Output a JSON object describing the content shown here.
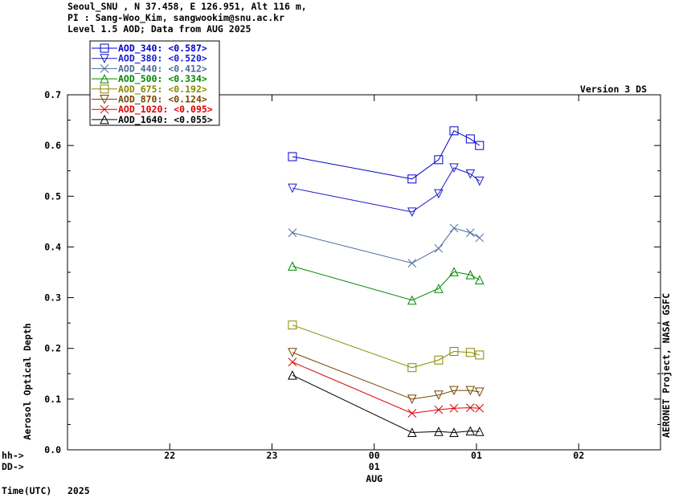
{
  "header": {
    "line1": "Seoul_SNU , N 37.458, E 126.951, Alt 116 m,",
    "line2": "PI : Sang-Woo_Kim, sangwookim@snu.ac.kr",
    "line3": "Level 1.5 AOD; Data from AUG 2025"
  },
  "version_label": "Version 3 DS",
  "right_label": "AERONET Project, NASA GSFC",
  "footer": {
    "hh_label": "hh->",
    "dd_label": "DD->",
    "time_label": "Time(UTC)",
    "year_label": "2025"
  },
  "chart_data": {
    "type": "line",
    "ylabel": "Aerosol Optical Depth",
    "ylim": [
      0.0,
      0.7
    ],
    "y_ticks": [
      "0.0",
      "0.1",
      "0.2",
      "0.3",
      "0.4",
      "0.5",
      "0.6",
      "0.7"
    ],
    "xlim": [
      21.0,
      26.8
    ],
    "x_ticks": [
      {
        "x": 22,
        "hh": "22",
        "dd": "",
        "mon": ""
      },
      {
        "x": 23,
        "hh": "23",
        "dd": "",
        "mon": ""
      },
      {
        "x": 24,
        "hh": "00",
        "dd": "01",
        "mon": "AUG"
      },
      {
        "x": 25,
        "hh": "01",
        "dd": "",
        "mon": ""
      },
      {
        "x": 26,
        "hh": "02",
        "dd": "",
        "mon": ""
      }
    ],
    "x": [
      23.2,
      24.37,
      24.63,
      24.78,
      24.94,
      25.03
    ],
    "legend_position": "top-left",
    "series": [
      {
        "name": "AOD_340",
        "mean": "<0.587>",
        "color": "#0000cc",
        "marker": "square",
        "values": [
          0.578,
          0.534,
          0.572,
          0.629,
          0.613,
          0.6
        ]
      },
      {
        "name": "AOD_380",
        "mean": "<0.520>",
        "color": "#1a1acc",
        "marker": "tri-down",
        "values": [
          0.516,
          0.469,
          0.505,
          0.556,
          0.544,
          0.53
        ]
      },
      {
        "name": "AOD_440",
        "mean": "<0.412>",
        "color": "#4a6a9a",
        "marker": "x",
        "values": [
          0.428,
          0.368,
          0.397,
          0.437,
          0.428,
          0.418
        ]
      },
      {
        "name": "AOD_500",
        "mean": "<0.334>",
        "color": "#008800",
        "marker": "tri-up",
        "values": [
          0.362,
          0.295,
          0.318,
          0.351,
          0.345,
          0.335
        ]
      },
      {
        "name": "AOD_675",
        "mean": "<0.192>",
        "color": "#888800",
        "marker": "square",
        "values": [
          0.246,
          0.162,
          0.177,
          0.194,
          0.192,
          0.187
        ]
      },
      {
        "name": "AOD_870",
        "mean": "<0.124>",
        "color": "#774400",
        "marker": "tri-down",
        "values": [
          0.192,
          0.1,
          0.108,
          0.117,
          0.117,
          0.114
        ]
      },
      {
        "name": "AOD_1020",
        "mean": "<0.095>",
        "color": "#dd0000",
        "marker": "x",
        "values": [
          0.173,
          0.072,
          0.079,
          0.082,
          0.083,
          0.082
        ]
      },
      {
        "name": "AOD_1640",
        "mean": "<0.055>",
        "color": "#000000",
        "marker": "tri-up",
        "values": [
          0.147,
          0.034,
          0.036,
          0.034,
          0.037,
          0.036
        ]
      }
    ]
  }
}
